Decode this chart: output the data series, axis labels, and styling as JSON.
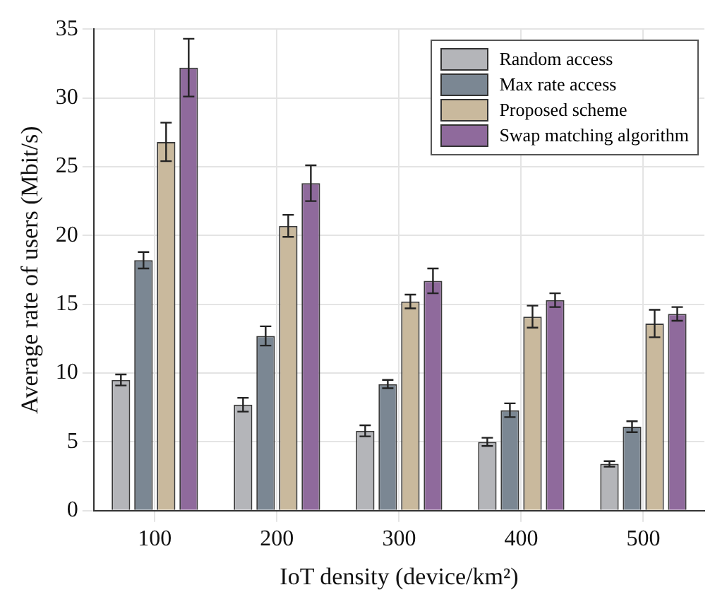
{
  "chart_data": {
    "type": "bar",
    "xlabel": "IoT density (device/km²)",
    "ylabel": "Average rate of users (Mbit/s)",
    "categories": [
      "100",
      "200",
      "300",
      "400",
      "500"
    ],
    "series": [
      {
        "name": "Random access",
        "color": "#b4b5b9",
        "values": [
          9.5,
          7.7,
          5.8,
          5.0,
          3.4
        ],
        "errors": [
          0.4,
          0.5,
          0.4,
          0.3,
          0.2
        ]
      },
      {
        "name": "Max rate access",
        "color": "#7b8793",
        "values": [
          18.2,
          12.7,
          9.2,
          7.3,
          6.1
        ],
        "errors": [
          0.6,
          0.7,
          0.3,
          0.5,
          0.4
        ]
      },
      {
        "name": "Proposed scheme",
        "color": "#c9b99d",
        "values": [
          26.8,
          20.7,
          15.2,
          14.1,
          13.6
        ],
        "errors": [
          1.4,
          0.8,
          0.5,
          0.8,
          1.0
        ]
      },
      {
        "name": "Swap matching algorithm",
        "color": "#8f6a9c",
        "values": [
          32.2,
          23.8,
          16.7,
          15.3,
          14.3
        ],
        "errors": [
          2.1,
          1.3,
          0.9,
          0.5,
          0.5
        ]
      }
    ],
    "ylim": [
      0,
      35
    ],
    "yticks": [
      0,
      5,
      10,
      15,
      20,
      25,
      30,
      35
    ],
    "grid": true,
    "legend": "top right"
  }
}
